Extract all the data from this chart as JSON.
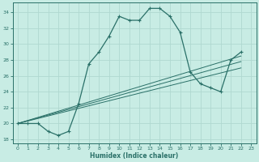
{
  "xlabel": "Humidex (Indice chaleur)",
  "bg_color": "#c8ece4",
  "line_color": "#2a7068",
  "grid_color": "#b0d8d0",
  "xlim": [
    -0.5,
    23.5
  ],
  "ylim": [
    17.5,
    35.2
  ],
  "yticks": [
    18,
    20,
    22,
    24,
    26,
    28,
    30,
    32,
    34
  ],
  "xticks": [
    0,
    1,
    2,
    3,
    4,
    5,
    6,
    7,
    8,
    9,
    10,
    11,
    12,
    13,
    14,
    15,
    16,
    17,
    18,
    19,
    20,
    21,
    22,
    23
  ],
  "main_x": [
    0,
    1,
    2,
    3,
    4,
    5,
    6,
    7,
    8,
    9,
    10,
    11,
    12,
    13,
    14,
    15,
    16,
    17,
    18,
    19,
    20,
    21,
    22
  ],
  "main_y": [
    20,
    20,
    20,
    19,
    18.5,
    19,
    22.5,
    27.5,
    29.0,
    31.0,
    33.5,
    33.0,
    33.0,
    34.5,
    34.5,
    33.5,
    31.5,
    26.5,
    25.0,
    24.5,
    24.0,
    28.0,
    29.0
  ],
  "line1_x": [
    0,
    22
  ],
  "line1_y": [
    20,
    28.5
  ],
  "line2_x": [
    0,
    22
  ],
  "line2_y": [
    20,
    27.0
  ],
  "line3_x": [
    0,
    22
  ],
  "line3_y": [
    20,
    27.8
  ]
}
